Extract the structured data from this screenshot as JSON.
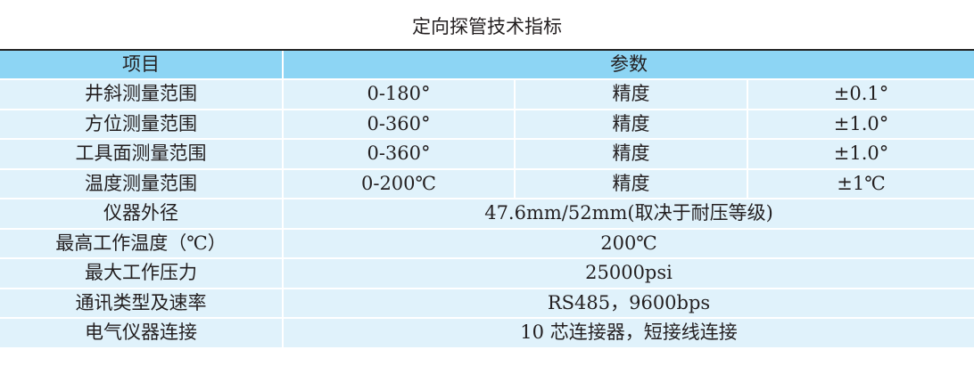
{
  "title": "定向探管技术指标",
  "header": {
    "item": "项目",
    "params": "参数"
  },
  "precision_rows": [
    {
      "item": "井斜测量范围",
      "range": "0-180°",
      "label": "精度",
      "precision": "±0.1°"
    },
    {
      "item": "方位测量范围",
      "range": "0-360°",
      "label": "精度",
      "precision": "±1.0°"
    },
    {
      "item": "工具面测量范围",
      "range": "0-360°",
      "label": "精度",
      "precision": "±1.0°"
    },
    {
      "item": "温度测量范围",
      "range": "0-200℃",
      "label": "精度",
      "precision": "±1℃"
    }
  ],
  "spec_rows": [
    {
      "item": "仪器外径",
      "value": "47.6mm/52mm(取决于耐压等级)"
    },
    {
      "item": "最高工作温度（℃）",
      "value": "200℃"
    },
    {
      "item": "最大工作压力",
      "value": "25000psi"
    },
    {
      "item": "通讯类型及速率",
      "value": "RS485，9600bps"
    },
    {
      "item": "电气仪器连接",
      "value": "10 芯连接器，短接线连接"
    }
  ],
  "colors": {
    "header_bg": "#8dd5f4",
    "row_bg": "#e0f2fb"
  }
}
